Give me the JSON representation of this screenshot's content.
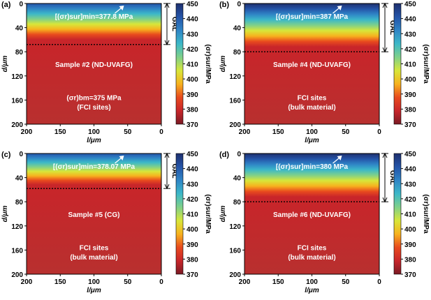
{
  "colors": {
    "colormap": [
      "#1e2f6e",
      "#2454a8",
      "#2f85c6",
      "#3cb8c8",
      "#7fd08a",
      "#d8e63a",
      "#f7b21e",
      "#e84a1e",
      "#c8252a",
      "#7a1a24"
    ],
    "background_sample": "#b8302f",
    "annotation_text": "#ffffff"
  },
  "chart_data": [
    {
      "type": "heatmap",
      "panel_label": "(a)",
      "xlabel": "l/μm",
      "ylabel": "d/μm",
      "xlim": [
        200,
        0
      ],
      "ylim": [
        200,
        0
      ],
      "xticks": [
        200,
        150,
        100,
        50,
        0
      ],
      "yticks": [
        0,
        40,
        80,
        120,
        160,
        200
      ],
      "surface_value_mpa": 440,
      "bulk_value_mpa": 375,
      "gradient_depth_um": 60,
      "gal_depth_um": 68,
      "gal_label": "GAL",
      "annotation_min": "[(σr)sur]min=377.8 MPa",
      "sample_label": "Sample #2 (ND-UVAFG)",
      "bm_line1": "(σr)bm=375 MPa",
      "bm_line2": "(FCI sites)",
      "colorbar": {
        "label": "(σr)sur/MPa",
        "range": [
          370,
          450
        ],
        "ticks": [
          370,
          380,
          390,
          400,
          410,
          420,
          430,
          440,
          450
        ]
      }
    },
    {
      "type": "heatmap",
      "panel_label": "(b)",
      "xlabel": "l/μm",
      "ylabel": "d/μm",
      "xlim": [
        200,
        0
      ],
      "ylim": [
        200,
        0
      ],
      "xticks": [
        200,
        150,
        100,
        50,
        0
      ],
      "yticks": [
        0,
        40,
        80,
        120,
        160,
        200
      ],
      "surface_value_mpa": 448,
      "bulk_value_mpa": 376,
      "gradient_depth_um": 72,
      "gal_depth_um": 80,
      "gal_label": "GAL",
      "annotation_min": "[(σr)sur]min=387 MPa",
      "sample_label": "Sample #4 (ND-UVAFG)",
      "bm_line1": "FCI sites",
      "bm_line2": "(bulk material)",
      "colorbar": {
        "label": "(σr)sur/MPa",
        "range": [
          370,
          450
        ],
        "ticks": [
          370,
          380,
          390,
          400,
          410,
          420,
          430,
          440,
          450
        ]
      }
    },
    {
      "type": "heatmap",
      "panel_label": "(c)",
      "xlabel": "l/μm",
      "ylabel": "d/μm",
      "xlim": [
        200,
        0
      ],
      "ylim": [
        200,
        0
      ],
      "xticks": [
        200,
        150,
        100,
        50,
        0
      ],
      "yticks": [
        0,
        40,
        80,
        120,
        160,
        200
      ],
      "surface_value_mpa": 440,
      "bulk_value_mpa": 376,
      "gradient_depth_um": 52,
      "gal_depth_um": 58,
      "gal_label": "GAL",
      "annotation_min": "[(σr)sur]min=378.07 MPa",
      "sample_label": "Sample #5 (CG)",
      "bm_line1": "FCI sites",
      "bm_line2": "(bulk material)",
      "colorbar": {
        "label": "(σr)sur/MPa",
        "range": [
          370,
          450
        ],
        "ticks": [
          370,
          380,
          390,
          400,
          410,
          420,
          430,
          440,
          450
        ]
      }
    },
    {
      "type": "heatmap",
      "panel_label": "(d)",
      "xlabel": "l/μm",
      "ylabel": "d/μm",
      "xlim": [
        200,
        0
      ],
      "ylim": [
        200,
        0
      ],
      "xticks": [
        200,
        150,
        100,
        50,
        0
      ],
      "yticks": [
        0,
        40,
        80,
        120,
        160,
        200
      ],
      "surface_value_mpa": 448,
      "bulk_value_mpa": 376,
      "gradient_depth_um": 72,
      "gal_depth_um": 80,
      "gal_label": "GAL",
      "annotation_min": "[(σr)sur]min=380 MPa",
      "sample_label": "Sample #6 (ND-UVAFG)",
      "bm_line1": "FCI sites",
      "bm_line2": "(bulk material)",
      "colorbar": {
        "label": "(σr)sur/MPa",
        "range": [
          370,
          450
        ],
        "ticks": [
          370,
          380,
          390,
          400,
          410,
          420,
          430,
          440,
          450
        ]
      }
    }
  ]
}
